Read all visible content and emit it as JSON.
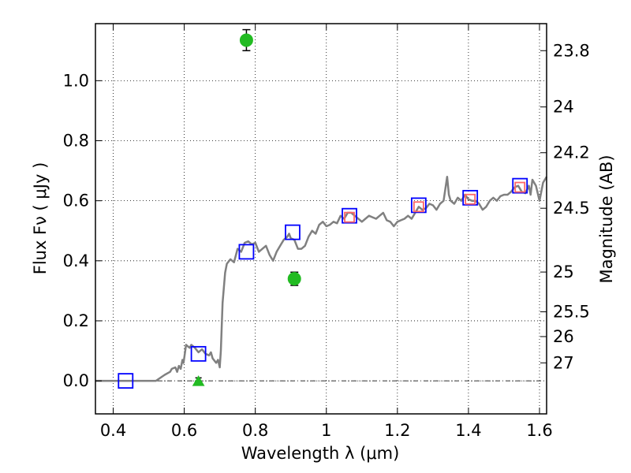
{
  "chart_data": {
    "type": "scatter",
    "title": "",
    "xlabel": "Wavelength  λ (μm)",
    "ylabel": "Flux  Fν  ( μJy )",
    "ylabel_right": "Magnitude (AB)",
    "xlim": [
      0.35,
      1.62
    ],
    "ylim": [
      -0.11,
      1.19
    ],
    "grid": true,
    "x_ticks": [
      {
        "value": 0.4,
        "label": "0.4"
      },
      {
        "value": 0.6,
        "label": "0.6"
      },
      {
        "value": 0.8,
        "label": "0.8"
      },
      {
        "value": 1.0,
        "label": "1"
      },
      {
        "value": 1.2,
        "label": "1.2"
      },
      {
        "value": 1.4,
        "label": "1.4"
      },
      {
        "value": 1.6,
        "label": "1.6"
      }
    ],
    "y_ticks": [
      {
        "value": 0.0,
        "label": "0.0"
      },
      {
        "value": 0.2,
        "label": "0.2"
      },
      {
        "value": 0.4,
        "label": "0.4"
      },
      {
        "value": 0.6,
        "label": "0.6"
      },
      {
        "value": 0.8,
        "label": "0.8"
      },
      {
        "value": 1.0,
        "label": "1.0"
      }
    ],
    "right_ticks": [
      {
        "label": "23.8",
        "flux": 1.1
      },
      {
        "label": "24",
        "flux": 0.9125
      },
      {
        "label": "24.2",
        "flux": 0.76
      },
      {
        "label": "24.5",
        "flux": 0.575
      },
      {
        "label": "25",
        "flux": 0.3625
      },
      {
        "label": "25.5",
        "flux": 0.23
      },
      {
        "label": "26",
        "flux": 0.1475
      },
      {
        "label": "27",
        "flux": 0.06
      }
    ],
    "zero_line": 0.0,
    "series": [
      {
        "kind": "line",
        "color": "#808080",
        "points": [
          [
            0.35,
            0.0
          ],
          [
            0.52,
            0.0
          ],
          [
            0.545,
            0.02
          ],
          [
            0.56,
            0.03
          ],
          [
            0.565,
            0.04
          ],
          [
            0.575,
            0.045
          ],
          [
            0.58,
            0.03
          ],
          [
            0.585,
            0.05
          ],
          [
            0.59,
            0.04
          ],
          [
            0.595,
            0.07
          ],
          [
            0.598,
            0.06
          ],
          [
            0.605,
            0.12
          ],
          [
            0.61,
            0.115
          ],
          [
            0.615,
            0.11
          ],
          [
            0.62,
            0.12
          ],
          [
            0.63,
            0.11
          ],
          [
            0.64,
            0.095
          ],
          [
            0.65,
            0.105
          ],
          [
            0.66,
            0.09
          ],
          [
            0.67,
            0.085
          ],
          [
            0.675,
            0.095
          ],
          [
            0.68,
            0.075
          ],
          [
            0.69,
            0.06
          ],
          [
            0.695,
            0.07
          ],
          [
            0.7,
            0.045
          ],
          [
            0.703,
            0.1
          ],
          [
            0.708,
            0.26
          ],
          [
            0.715,
            0.36
          ],
          [
            0.72,
            0.39
          ],
          [
            0.73,
            0.405
          ],
          [
            0.74,
            0.395
          ],
          [
            0.75,
            0.44
          ],
          [
            0.76,
            0.43
          ],
          [
            0.77,
            0.46
          ],
          [
            0.78,
            0.465
          ],
          [
            0.79,
            0.455
          ],
          [
            0.8,
            0.46
          ],
          [
            0.81,
            0.43
          ],
          [
            0.82,
            0.44
          ],
          [
            0.83,
            0.45
          ],
          [
            0.84,
            0.42
          ],
          [
            0.85,
            0.4
          ],
          [
            0.86,
            0.43
          ],
          [
            0.87,
            0.45
          ],
          [
            0.88,
            0.47
          ],
          [
            0.89,
            0.48
          ],
          [
            0.895,
            0.49
          ],
          [
            0.9,
            0.475
          ],
          [
            0.91,
            0.47
          ],
          [
            0.92,
            0.44
          ],
          [
            0.93,
            0.44
          ],
          [
            0.94,
            0.45
          ],
          [
            0.95,
            0.48
          ],
          [
            0.96,
            0.5
          ],
          [
            0.97,
            0.49
          ],
          [
            0.98,
            0.52
          ],
          [
            0.99,
            0.53
          ],
          [
            1.0,
            0.515
          ],
          [
            1.01,
            0.52
          ],
          [
            1.02,
            0.53
          ],
          [
            1.03,
            0.525
          ],
          [
            1.04,
            0.55
          ],
          [
            1.05,
            0.54
          ],
          [
            1.06,
            0.56
          ],
          [
            1.07,
            0.56
          ],
          [
            1.08,
            0.55
          ],
          [
            1.09,
            0.54
          ],
          [
            1.1,
            0.53
          ],
          [
            1.11,
            0.54
          ],
          [
            1.12,
            0.55
          ],
          [
            1.13,
            0.545
          ],
          [
            1.14,
            0.54
          ],
          [
            1.15,
            0.55
          ],
          [
            1.16,
            0.56
          ],
          [
            1.17,
            0.535
          ],
          [
            1.18,
            0.53
          ],
          [
            1.19,
            0.515
          ],
          [
            1.2,
            0.53
          ],
          [
            1.21,
            0.535
          ],
          [
            1.22,
            0.54
          ],
          [
            1.23,
            0.55
          ],
          [
            1.24,
            0.54
          ],
          [
            1.25,
            0.56
          ],
          [
            1.26,
            0.58
          ],
          [
            1.27,
            0.57
          ],
          [
            1.28,
            0.575
          ],
          [
            1.29,
            0.59
          ],
          [
            1.3,
            0.585
          ],
          [
            1.31,
            0.57
          ],
          [
            1.32,
            0.59
          ],
          [
            1.33,
            0.6
          ],
          [
            1.34,
            0.68
          ],
          [
            1.345,
            0.62
          ],
          [
            1.35,
            0.6
          ],
          [
            1.36,
            0.59
          ],
          [
            1.37,
            0.61
          ],
          [
            1.38,
            0.6
          ],
          [
            1.39,
            0.62
          ],
          [
            1.4,
            0.605
          ],
          [
            1.41,
            0.6
          ],
          [
            1.42,
            0.6
          ],
          [
            1.43,
            0.59
          ],
          [
            1.44,
            0.57
          ],
          [
            1.45,
            0.58
          ],
          [
            1.46,
            0.6
          ],
          [
            1.47,
            0.61
          ],
          [
            1.48,
            0.6
          ],
          [
            1.49,
            0.615
          ],
          [
            1.5,
            0.62
          ],
          [
            1.51,
            0.62
          ],
          [
            1.52,
            0.63
          ],
          [
            1.53,
            0.645
          ],
          [
            1.54,
            0.65
          ],
          [
            1.55,
            0.63
          ],
          [
            1.56,
            0.625
          ],
          [
            1.57,
            0.65
          ],
          [
            1.575,
            0.62
          ],
          [
            1.58,
            0.67
          ],
          [
            1.59,
            0.65
          ],
          [
            1.6,
            0.6
          ],
          [
            1.61,
            0.66
          ],
          [
            1.62,
            0.68
          ]
        ]
      },
      {
        "kind": "open-square",
        "color": "#0000ff",
        "points": [
          [
            0.435,
            0.0
          ],
          [
            0.64,
            0.09
          ],
          [
            0.775,
            0.43
          ],
          [
            0.905,
            0.495
          ],
          [
            1.065,
            0.55
          ],
          [
            1.26,
            0.585
          ],
          [
            1.405,
            0.61
          ],
          [
            1.545,
            0.65
          ]
        ]
      },
      {
        "kind": "open-square",
        "color": "#ff6666",
        "points": [
          [
            1.065,
            0.545
          ],
          [
            1.26,
            0.58
          ],
          [
            1.405,
            0.605
          ],
          [
            1.545,
            0.645
          ]
        ]
      },
      {
        "kind": "filled-circle",
        "color": "#22bb22",
        "points": [
          [
            0.775,
            1.135
          ],
          [
            0.91,
            0.34
          ]
        ],
        "yerr": [
          0.035,
          0.022
        ]
      },
      {
        "kind": "triangle",
        "color": "#22bb22",
        "points": [
          [
            0.64,
            0.0
          ]
        ],
        "yerr": [
          0.01
        ]
      }
    ]
  }
}
